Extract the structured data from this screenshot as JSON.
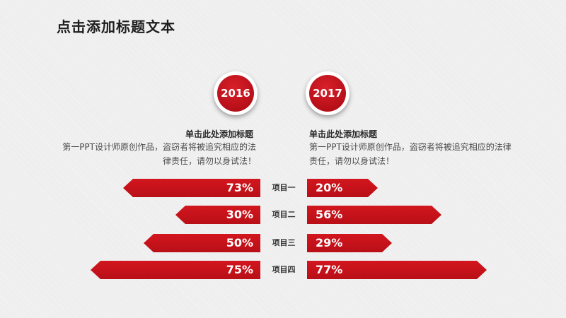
{
  "title": "点击添加标题文本",
  "left": {
    "year": "2016",
    "heading": "单击此处添加标题",
    "desc_line1": "第一PPT设计师原创作品，盗窃者将被追究相应的法",
    "desc_line2": "律责任，请勿以身试法！"
  },
  "right": {
    "year": "2017",
    "heading": "单击此处添加标题",
    "desc_line1": "第一PPT设计师原创作品，盗窃者将被追究相应的法律",
    "desc_line2": "责任，请勿以身试法！"
  },
  "rows": [
    {
      "label": "项目一",
      "left_value": "73%",
      "right_value": "20%"
    },
    {
      "label": "项目二",
      "left_value": "30%",
      "right_value": "56%"
    },
    {
      "label": "项目三",
      "left_value": "50%",
      "right_value": "29%"
    },
    {
      "label": "项目四",
      "left_value": "75%",
      "right_value": "77%"
    }
  ],
  "colors": {
    "accent": "#c0111a",
    "text": "#1e1e1e"
  }
}
